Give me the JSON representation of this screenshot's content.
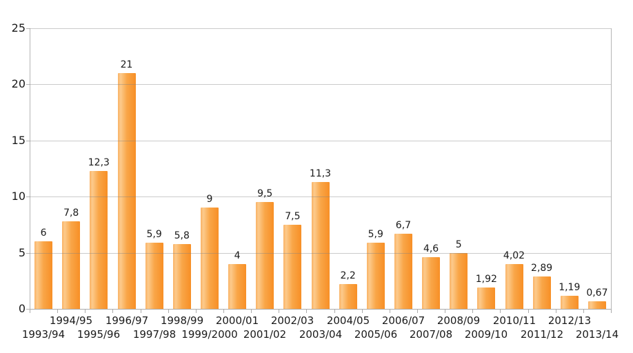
{
  "chart_data": {
    "type": "bar",
    "title": "",
    "legend": "none",
    "grid": true,
    "categories": [
      "1993/94",
      "1994/95",
      "1995/96",
      "1996/97",
      "1997/98",
      "1998/99",
      "1999/2000",
      "2000/01",
      "2001/02",
      "2002/03",
      "2003/04",
      "2004/05",
      "2005/06",
      "2006/07",
      "2007/08",
      "2008/09",
      "2009/10",
      "2010/11",
      "2011/12",
      "2012/13",
      "2013/14"
    ],
    "values": [
      6,
      7.8,
      12.3,
      21,
      5.9,
      5.8,
      9,
      4,
      9.5,
      7.5,
      11.3,
      2.2,
      5.9,
      6.7,
      4.6,
      5,
      1.92,
      4.02,
      2.89,
      1.19,
      0.67
    ],
    "value_labels": [
      "6",
      "7,8",
      "12,3",
      "21",
      "5,9",
      "5,8",
      "9",
      "4",
      "9,5",
      "7,5",
      "11,3",
      "2,2",
      "5,9",
      "6,7",
      "4,6",
      "5",
      "1,92",
      "4,02",
      "2,89",
      "1,19",
      "0,67"
    ],
    "xlabel": "",
    "ylabel": "",
    "y_axis": {
      "min": 0,
      "max": 25,
      "ticks": [
        0,
        5,
        10,
        15,
        20,
        25
      ],
      "tick_labels": [
        "0",
        "5",
        "10",
        "15",
        "20",
        "25"
      ]
    },
    "x_label_layout": "staggered-two-rows",
    "colors": {
      "bar_gradient": [
        "#FAB264",
        "#FCCA8C",
        "#F9A648",
        "#F78F26"
      ],
      "gridline_overlay": "rgba(128,128,128,0.42)",
      "axis": "#B4B4B4",
      "text": "#1A1A1A",
      "background": "#FFFFFF"
    }
  }
}
